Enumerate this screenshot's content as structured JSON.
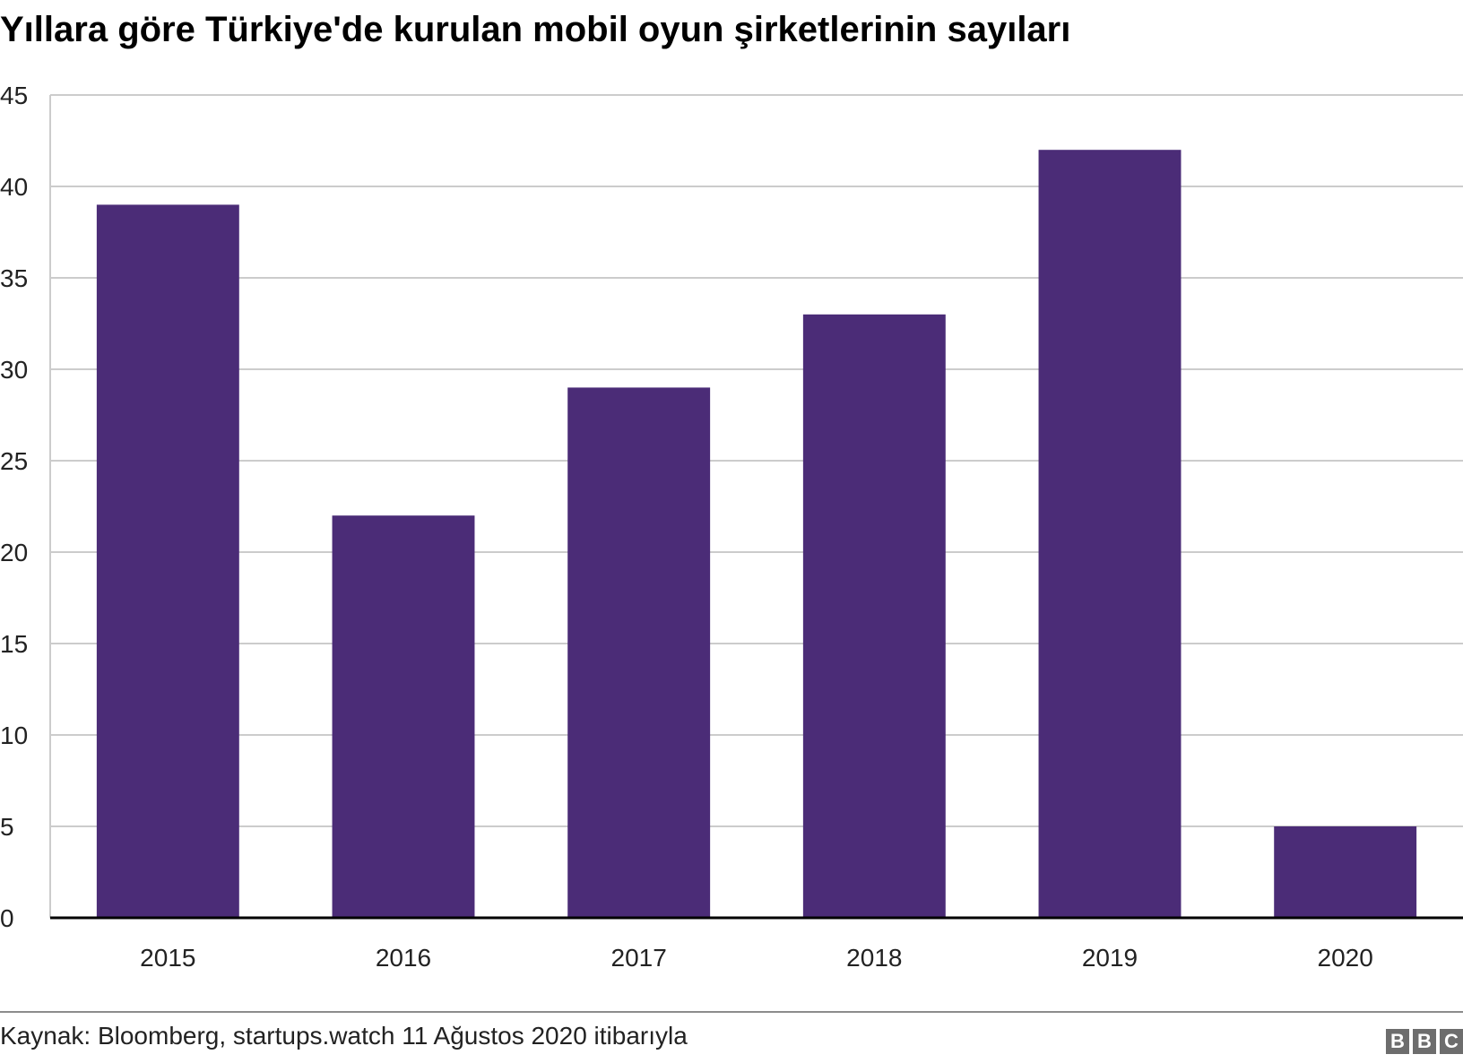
{
  "chart_data": {
    "type": "bar",
    "title": "Yıllara göre Türkiye'de kurulan mobil oyun şirketlerinin sayıları",
    "categories": [
      "2015",
      "2016",
      "2017",
      "2018",
      "2019",
      "2020"
    ],
    "values": [
      39,
      22,
      29,
      33,
      42,
      5
    ],
    "xlabel": "",
    "ylabel": "",
    "ylim": [
      0,
      45
    ],
    "yticks": [
      0,
      5,
      10,
      15,
      20,
      25,
      30,
      35,
      40,
      45
    ],
    "grid": true,
    "legend": "none",
    "bar_color": "#4b2c77",
    "grid_color": "#cccccc",
    "axis_color": "#000000"
  },
  "footer": {
    "source": "Kaynak: Bloomberg, startups.watch 11 Ağustos 2020 itibarıyla",
    "logo_letters": [
      "B",
      "B",
      "C"
    ]
  }
}
